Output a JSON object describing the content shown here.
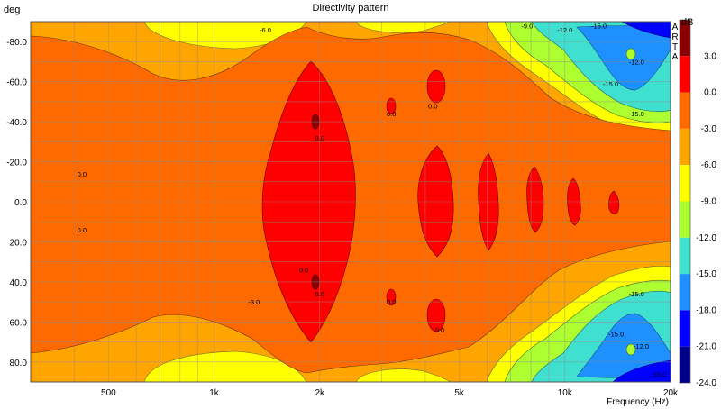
{
  "chart_data": {
    "type": "heatmap",
    "title": "Directivity pattern",
    "watermark": "ARTA",
    "ylabel": "deg",
    "xlabel": "Frequency (Hz)",
    "x_scale": "log",
    "xlim": [
      300,
      20000
    ],
    "ylim": [
      -90,
      90
    ],
    "y_inverted": true,
    "x_ticks": [
      500,
      1000,
      2000,
      5000,
      10000,
      20000
    ],
    "x_tick_labels": [
      "500",
      "1k",
      "2k",
      "5k",
      "10k",
      "20k"
    ],
    "y_ticks": [
      -80,
      -60,
      -40,
      -20,
      0,
      20,
      40,
      60,
      80
    ],
    "y_tick_labels": [
      "-80.0",
      "-60.0",
      "-40.0",
      "-20.0",
      "0.0",
      "20.0",
      "40.0",
      "60.0",
      "80.0"
    ],
    "grid": true,
    "colorbar": {
      "label": "dB",
      "levels": [
        3,
        0,
        -3,
        -6,
        -9,
        -12,
        -15,
        -18,
        -21,
        -24
      ],
      "tick_labels": [
        "3.0",
        "0.0",
        "-3.0",
        "-6.0",
        "-9.0",
        "-12.0",
        "-15.0",
        "-18.0",
        "-21.0",
        "-24.0"
      ],
      "colors": [
        "#8b0000",
        "#ff0000",
        "#ff6a00",
        "#ffa500",
        "#ffff00",
        "#adff2f",
        "#40e0d0",
        "#1e90ff",
        "#0000ff",
        "#00008b"
      ]
    },
    "contour_labels": [
      {
        "text": "0.0",
        "f": 420,
        "deg": -14
      },
      {
        "text": "0.0",
        "f": 420,
        "deg": 14
      },
      {
        "text": "-6.0",
        "f": 1400,
        "deg": -86
      },
      {
        "text": "0.0",
        "f": 2000,
        "deg": -32
      },
      {
        "text": "0.0",
        "f": 1800,
        "deg": 34
      },
      {
        "text": "0.0",
        "f": 2000,
        "deg": 46
      },
      {
        "text": "-3.0",
        "f": 1300,
        "deg": 50
      },
      {
        "text": "0.0",
        "f": 3200,
        "deg": -44
      },
      {
        "text": "0.0",
        "f": 4200,
        "deg": -48
      },
      {
        "text": "0.0",
        "f": 3200,
        "deg": 50
      },
      {
        "text": "0.0",
        "f": 4400,
        "deg": 64
      },
      {
        "text": "-9.0",
        "f": 7800,
        "deg": -88
      },
      {
        "text": "-12.0",
        "f": 10000,
        "deg": -86
      },
      {
        "text": "-15.0",
        "f": 12500,
        "deg": -88
      },
      {
        "text": "-12.0",
        "f": 16000,
        "deg": -70
      },
      {
        "text": "-15.0",
        "f": 13500,
        "deg": -59
      },
      {
        "text": "-15.0",
        "f": 16000,
        "deg": -44
      },
      {
        "text": "-15.0",
        "f": 16000,
        "deg": 46
      },
      {
        "text": "-15.0",
        "f": 14000,
        "deg": 66
      },
      {
        "text": "-12.0",
        "f": 16500,
        "deg": 72
      },
      {
        "text": "-15.0",
        "f": 18500,
        "deg": 86
      }
    ]
  }
}
